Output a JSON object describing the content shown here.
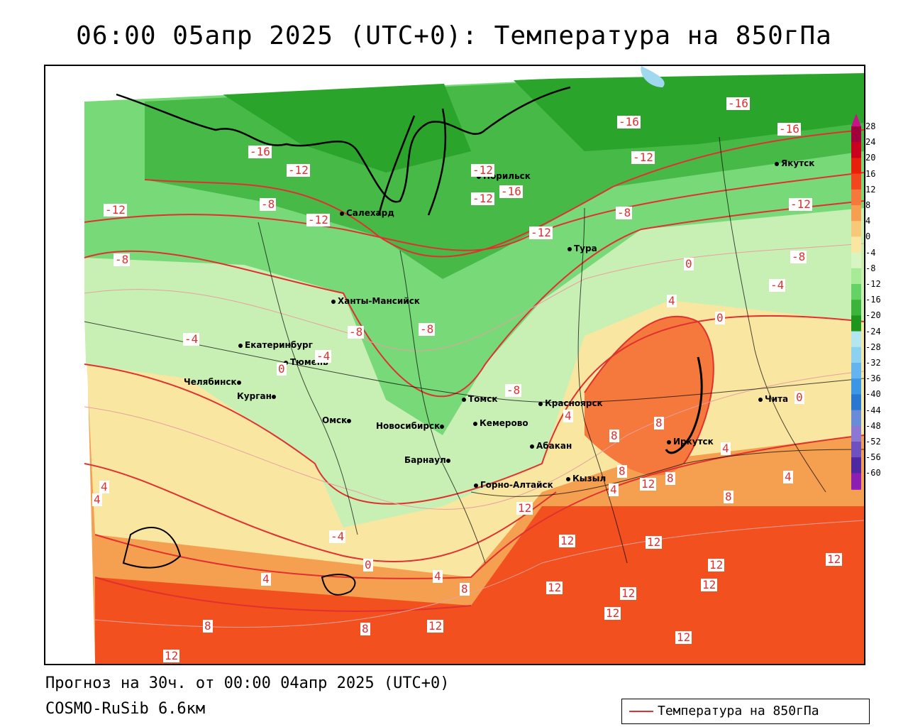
{
  "title": "06:00 05апр 2025 (UTC+0): Температура на 850гПа",
  "forecast_line": "Прогноз на 30ч. от 00:00 04апр 2025 (UTC+0)",
  "model_line": "COSMO-RuSib 6.6км",
  "legend_label": "Температура на 850гПа",
  "cities": [
    {
      "name": "Норильск"
    },
    {
      "name": "Якутск"
    },
    {
      "name": "Салехард"
    },
    {
      "name": "Тура"
    },
    {
      "name": "Ханты-Мансийск"
    },
    {
      "name": "Екатеринбург"
    },
    {
      "name": "Тюмень"
    },
    {
      "name": "Челябинск"
    },
    {
      "name": "Курган"
    },
    {
      "name": "Омск"
    },
    {
      "name": "Новосибирск"
    },
    {
      "name": "Томск"
    },
    {
      "name": "Кемерово"
    },
    {
      "name": "Красноярск"
    },
    {
      "name": "Абакан"
    },
    {
      "name": "Барнаул"
    },
    {
      "name": "Горно-Алтайск"
    },
    {
      "name": "Кызыл"
    },
    {
      "name": "Иркутск"
    },
    {
      "name": "Чита"
    }
  ],
  "isotherm_labels": [
    "-16",
    "-16",
    "-16",
    "-16",
    "-12",
    "-12",
    "-12",
    "-12",
    "-12",
    "-12",
    "-12",
    "-16",
    "-12",
    "-8",
    "-8",
    "-8",
    "-8",
    "-8",
    "-8",
    "-8",
    "-4",
    "-4",
    "-4",
    "-4",
    "0",
    "0",
    "0",
    "0",
    "0",
    "4",
    "4",
    "4",
    "4",
    "4",
    "4",
    "4",
    "4",
    "4",
    "8",
    "8",
    "8",
    "8",
    "8",
    "8",
    "8",
    "8",
    "12",
    "12",
    "12",
    "12",
    "12",
    "12",
    "12",
    "12",
    "12",
    "12",
    "12",
    "12",
    "12"
  ],
  "color_scale": {
    "labels": [
      "28",
      "24",
      "20",
      "16",
      "12",
      "8",
      "4",
      "0",
      "-4",
      "-8",
      "-12",
      "-16",
      "-20",
      "-24",
      "-28",
      "-32",
      "-36",
      "-40",
      "-44",
      "-48",
      "-52",
      "-56",
      "-60"
    ],
    "colors": [
      "#a0003c",
      "#c8001e",
      "#e6200a",
      "#f2461e",
      "#f5783c",
      "#f5a050",
      "#f7c878",
      "#f9e6a0",
      "#d6f5c0",
      "#a6ec96",
      "#64d264",
      "#3cb43c",
      "#1e961e",
      "#b4e6f0",
      "#8cd2f0",
      "#64b4f0",
      "#3c96e6",
      "#2878d2",
      "#6a8cd8",
      "#8c78d2",
      "#6e50be",
      "#4e28a0",
      "#8c1eb4"
    ]
  },
  "colors": {
    "isotherm": "#e03030",
    "border": "#000000"
  }
}
